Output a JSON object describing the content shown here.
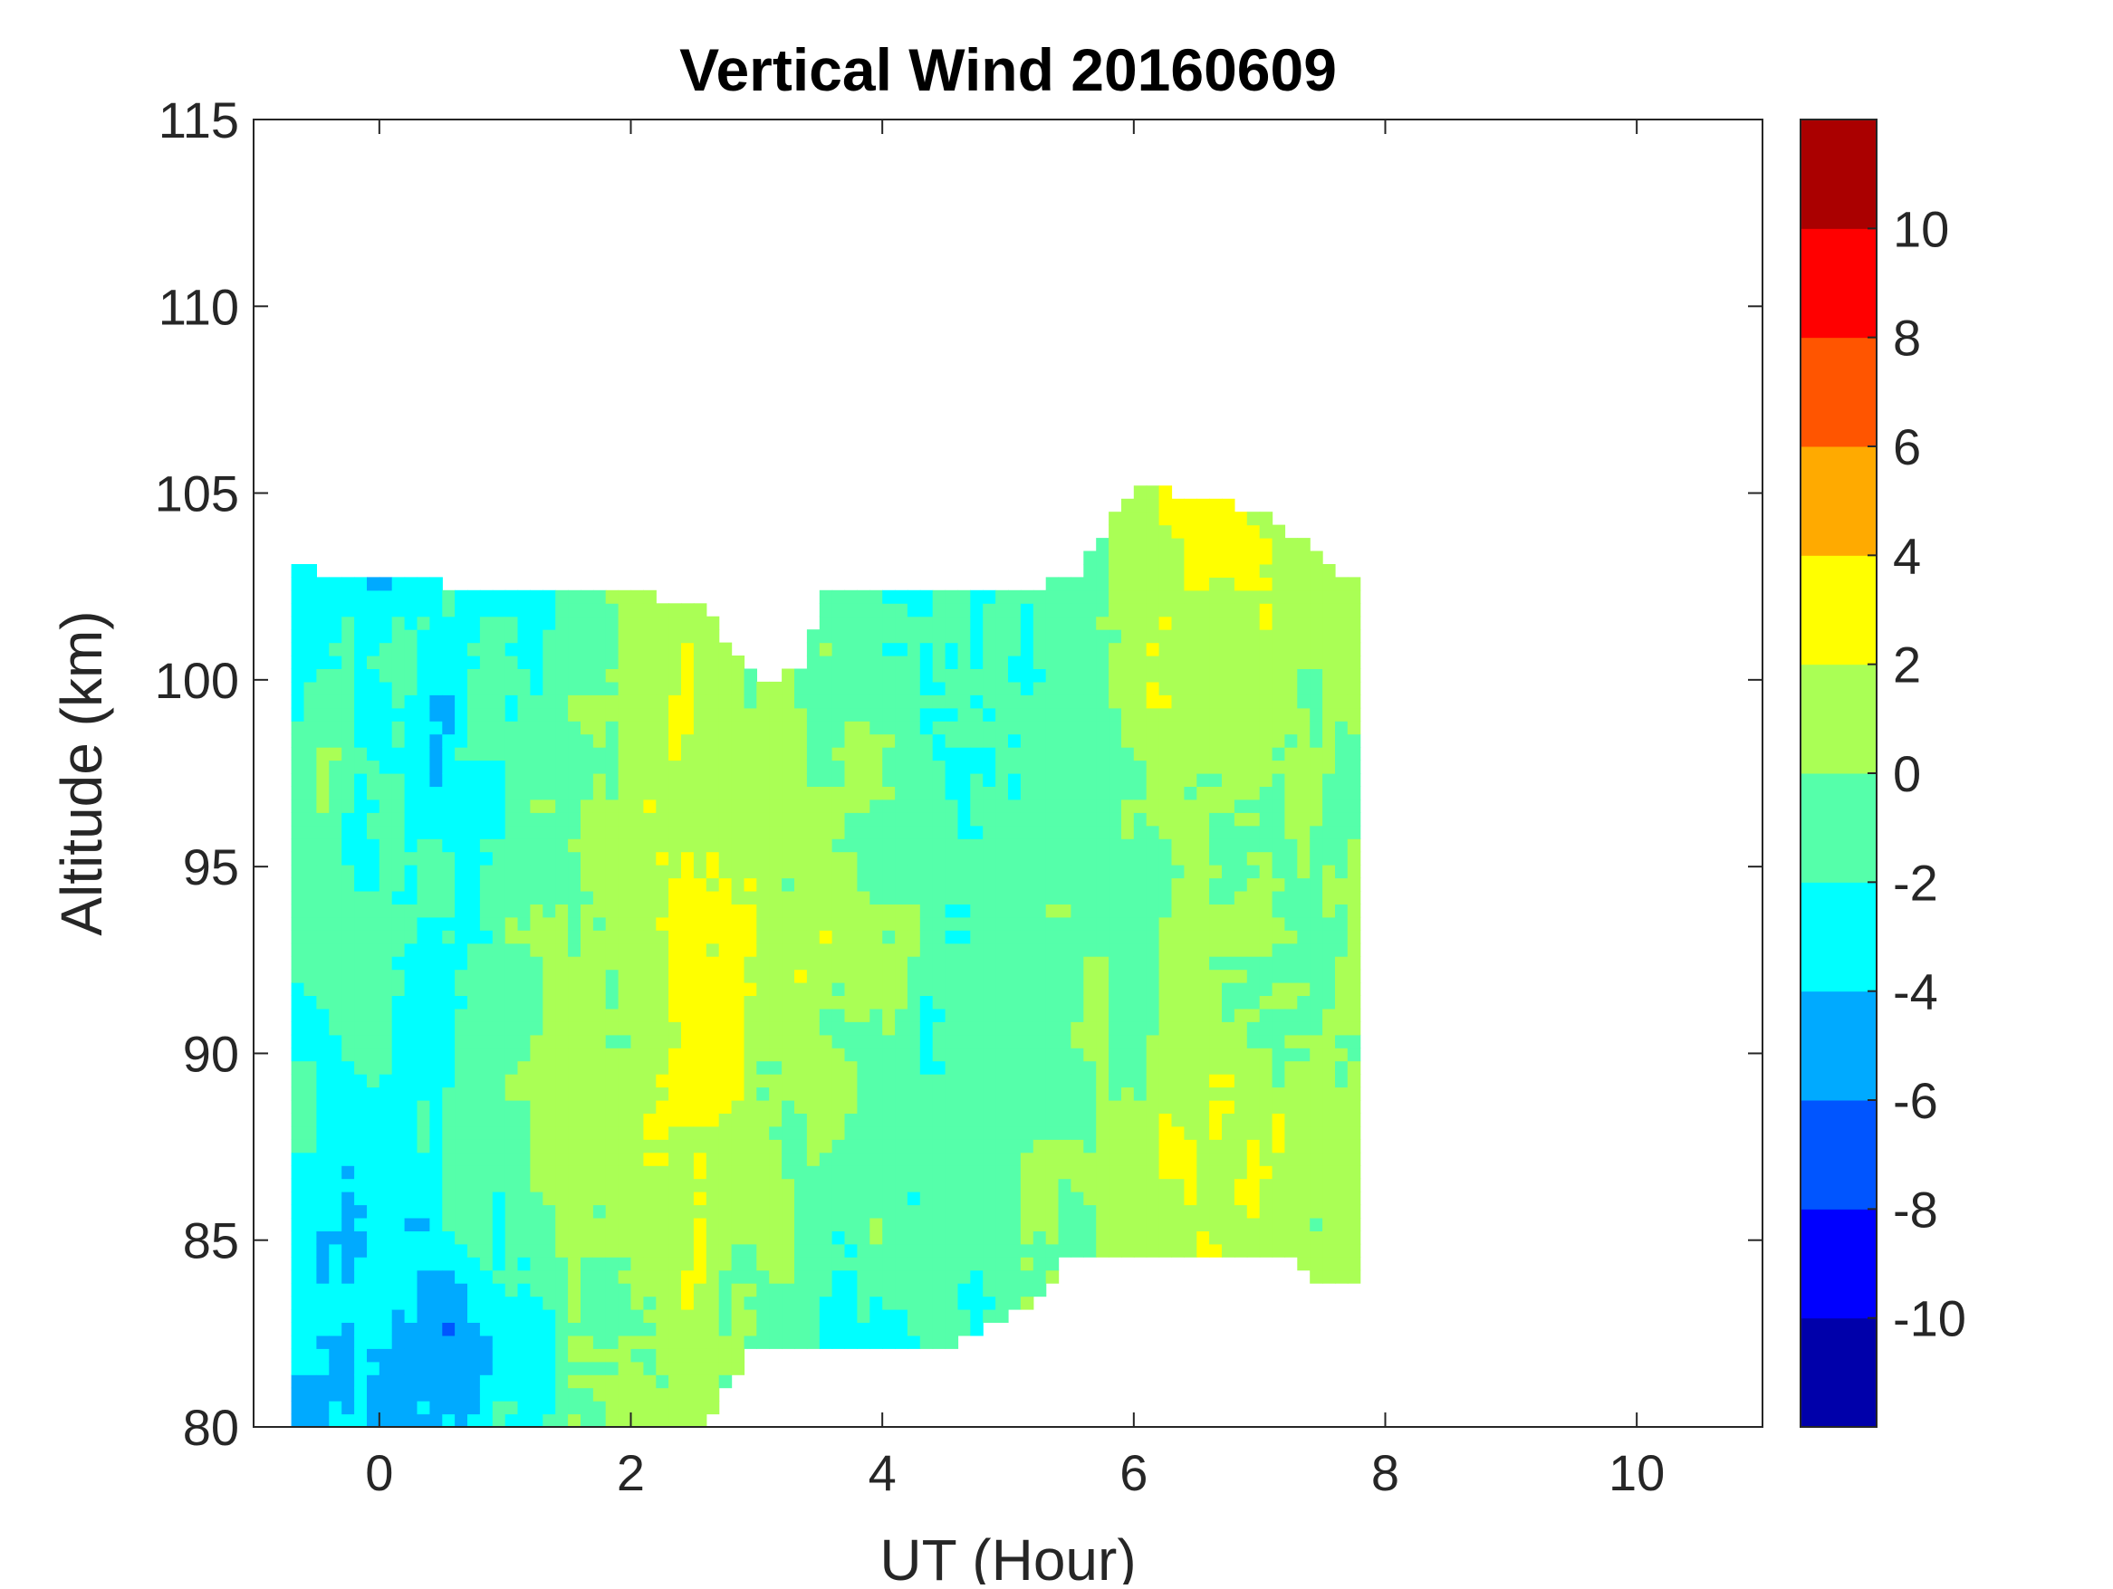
{
  "chart_data": {
    "type": "heatmap",
    "title": "Vertical Wind 20160609",
    "xlabel": "UT (Hour)",
    "ylabel": "Altitude (km)",
    "xlim": [
      -1,
      11
    ],
    "ylim": [
      80,
      115
    ],
    "xticks": [
      0,
      2,
      4,
      6,
      8,
      10
    ],
    "yticks": [
      80,
      85,
      90,
      95,
      100,
      105,
      110,
      115
    ],
    "grid": false,
    "colorbar": {
      "levels": [
        -12,
        -10,
        -8,
        -6,
        -4,
        -2,
        0,
        2,
        4,
        6,
        8,
        10,
        12
      ],
      "ticks": [
        -10,
        -8,
        -6,
        -4,
        -2,
        0,
        2,
        4,
        6,
        8,
        10
      ],
      "colors": [
        "#0000AA",
        "#0000FF",
        "#0055FF",
        "#00AAFF",
        "#00FFFF",
        "#55FFAA",
        "#AAFF55",
        "#FFFF00",
        "#FFAA00",
        "#FF5500",
        "#FF0000",
        "#AA0000"
      ],
      "placement": "right"
    },
    "coarse_grid": {
      "x_centers": [
        -0.5,
        0.5,
        1.5,
        2.5,
        3.5,
        4.5,
        5.5,
        6.5,
        7.5
      ],
      "y_centers": [
        82.5,
        87.5,
        92.5,
        97.5,
        102.5
      ],
      "values": [
        [
          -4,
          -3,
          -1,
          -1,
          -3
        ],
        [
          -5,
          -2,
          -2,
          -3,
          -3
        ],
        [
          -1,
          1,
          0,
          -1,
          -1
        ],
        [
          1,
          2,
          3,
          2,
          1
        ],
        [
          -2,
          0,
          1,
          0,
          -1
        ],
        [
          -2,
          -1,
          -1,
          -2,
          -2
        ],
        [
          0,
          0,
          -1,
          -1,
          -1
        ],
        [
          1,
          2,
          0,
          1,
          2
        ],
        [
          0,
          1,
          0,
          0,
          1
        ]
      ]
    },
    "data_extent": {
      "x": [
        -0.7,
        7.8
      ],
      "top_boundary": [
        [
          -0.7,
          103
        ],
        [
          1.3,
          102.3
        ],
        [
          2.5,
          102.2
        ],
        [
          3.0,
          100.0
        ],
        [
          3.4,
          100.2
        ],
        [
          3.5,
          102.5
        ],
        [
          5.3,
          102.5
        ],
        [
          5.6,
          103.0
        ],
        [
          6.0,
          105.3
        ],
        [
          7.0,
          104.5
        ],
        [
          7.8,
          102.5
        ]
      ],
      "bottom_boundary": [
        [
          -0.7,
          80
        ],
        [
          2.6,
          80
        ],
        [
          2.65,
          80.5
        ],
        [
          3.0,
          82.2
        ],
        [
          4.5,
          82.0
        ],
        [
          5.3,
          83.5
        ],
        [
          5.4,
          84.5
        ],
        [
          7.3,
          84.5
        ],
        [
          7.4,
          84.0
        ],
        [
          7.8,
          84.0
        ]
      ]
    }
  }
}
